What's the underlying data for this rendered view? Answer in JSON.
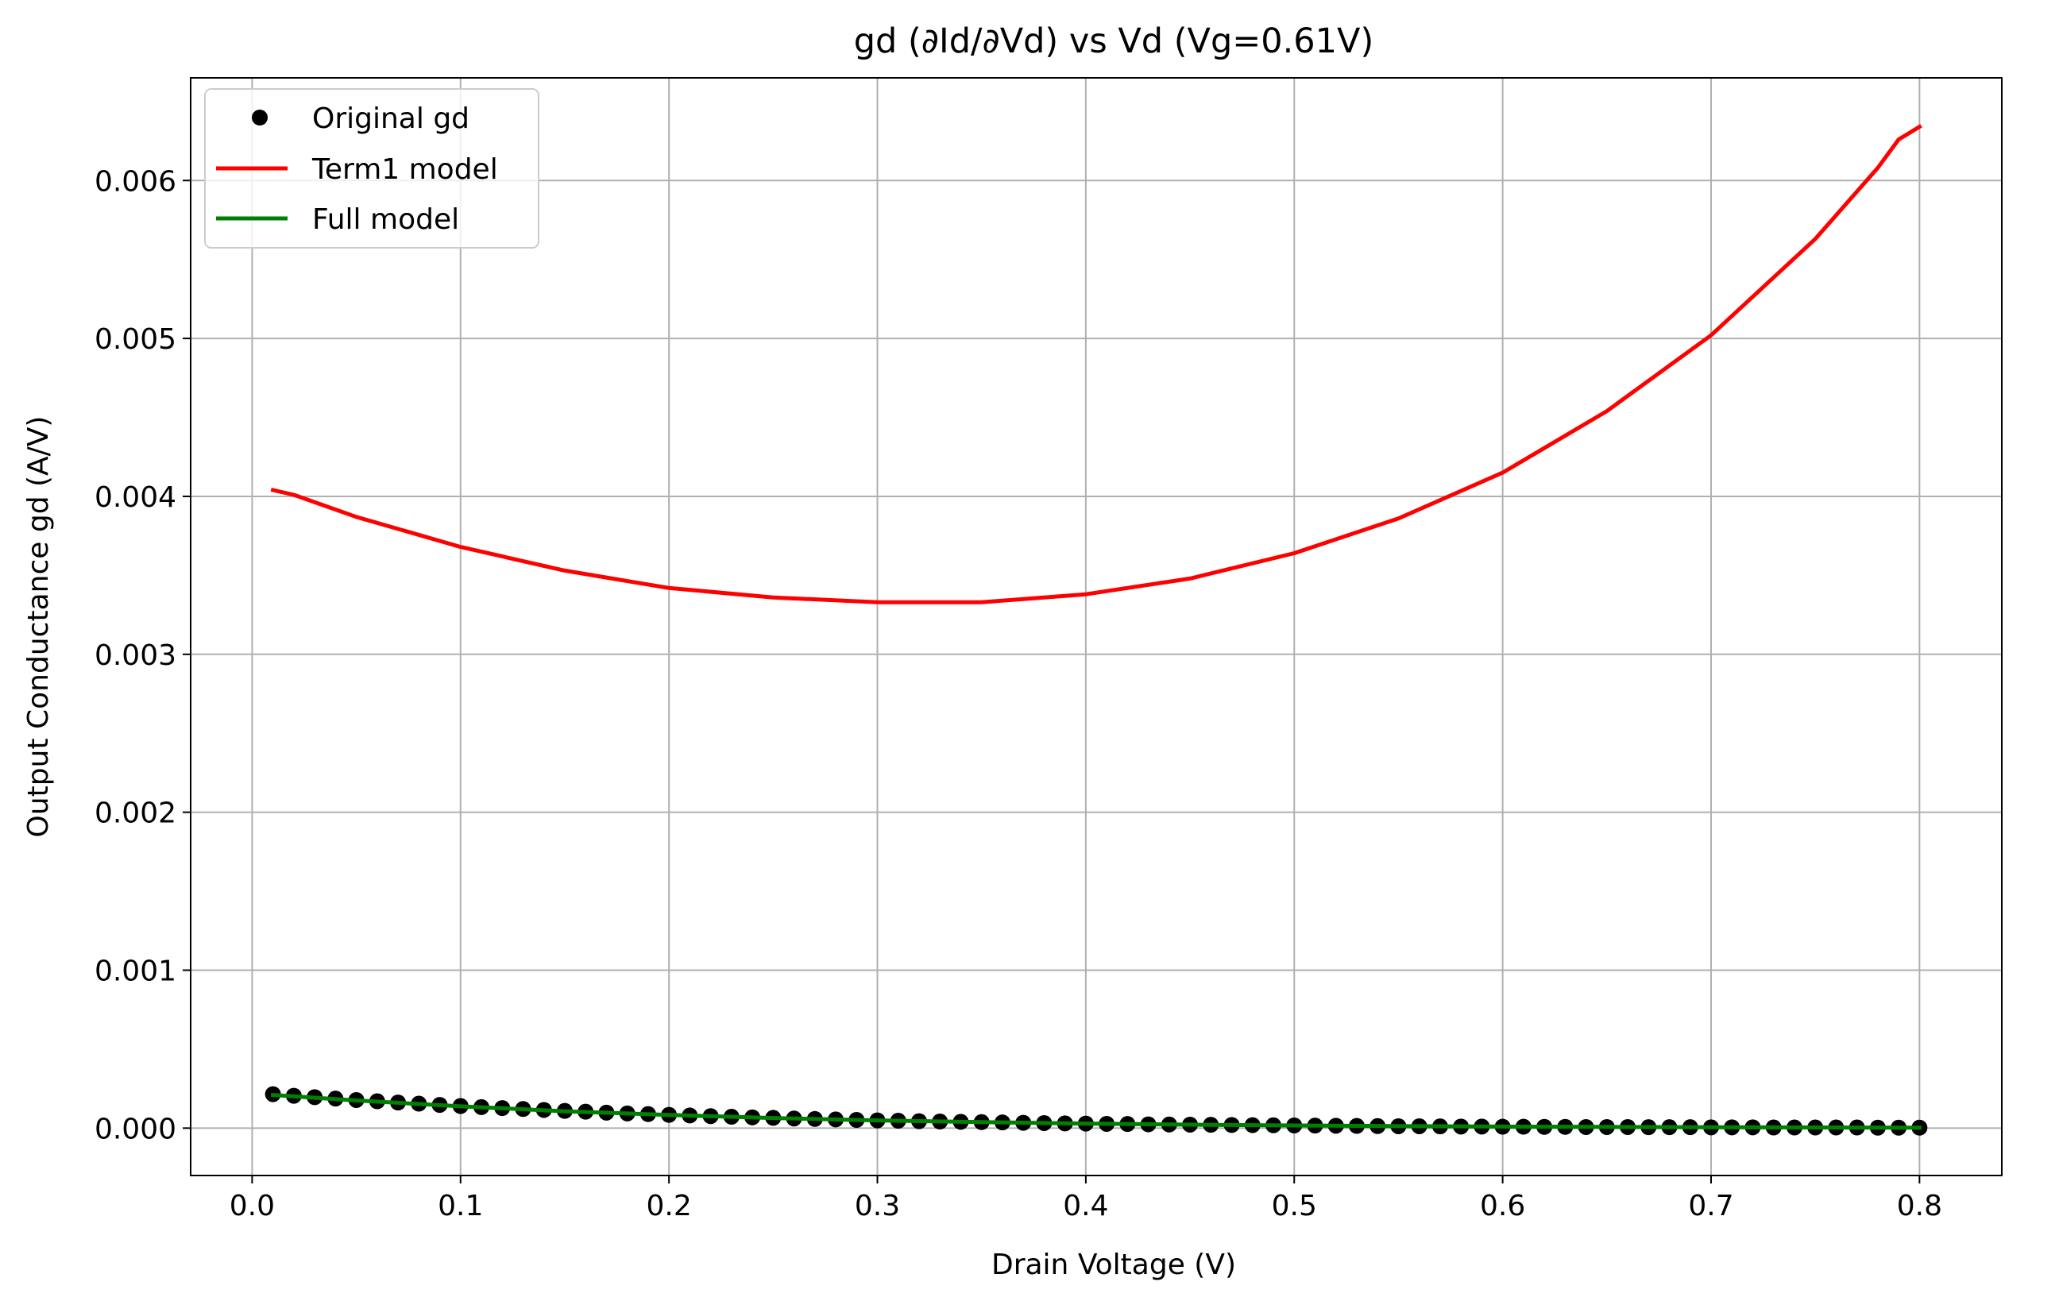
{
  "chart_data": {
    "type": "line",
    "title": "gd (∂Id/∂Vd) vs Vd (Vg=0.61V)",
    "xlabel": "Drain Voltage (V)",
    "ylabel": "Output Conductance gd (A/V)",
    "xlim": [
      -0.0295,
      0.8395
    ],
    "ylim": [
      -0.0003,
      0.00665
    ],
    "x_ticks": [
      0.0,
      0.1,
      0.2,
      0.3,
      0.4,
      0.5,
      0.6,
      0.7,
      0.8
    ],
    "x_tick_labels": [
      "0.0",
      "0.1",
      "0.2",
      "0.3",
      "0.4",
      "0.5",
      "0.6",
      "0.7",
      "0.8"
    ],
    "y_ticks": [
      0.0,
      0.001,
      0.002,
      0.003,
      0.004,
      0.005,
      0.006
    ],
    "y_tick_labels": [
      "0.000",
      "0.001",
      "0.002",
      "0.003",
      "0.004",
      "0.005",
      "0.006"
    ],
    "grid": true,
    "legend_position": "top-left",
    "series": [
      {
        "name": "Original gd",
        "kind": "scatter",
        "color": "#000000",
        "x": [
          0.01,
          0.02,
          0.03,
          0.04,
          0.05,
          0.06,
          0.07,
          0.08,
          0.09,
          0.1,
          0.11,
          0.12,
          0.13,
          0.14,
          0.15,
          0.16,
          0.17,
          0.18,
          0.19,
          0.2,
          0.21,
          0.22,
          0.23,
          0.24,
          0.25,
          0.26,
          0.27,
          0.28,
          0.29,
          0.3,
          0.31,
          0.32,
          0.33,
          0.34,
          0.35,
          0.36,
          0.37,
          0.38,
          0.39,
          0.4,
          0.41,
          0.42,
          0.43,
          0.44,
          0.45,
          0.46,
          0.47,
          0.48,
          0.49,
          0.5,
          0.51,
          0.52,
          0.53,
          0.54,
          0.55,
          0.56,
          0.57,
          0.58,
          0.59,
          0.6,
          0.61,
          0.62,
          0.63,
          0.64,
          0.65,
          0.66,
          0.67,
          0.68,
          0.69,
          0.7,
          0.71,
          0.72,
          0.73,
          0.74,
          0.75,
          0.76,
          0.77,
          0.78,
          0.79,
          0.8
        ],
        "y": [
          0.000215,
          0.000205,
          0.000196,
          0.000187,
          0.000178,
          0.00017,
          0.000162,
          0.000155,
          0.000147,
          0.00014,
          0.000133,
          0.000127,
          0.000121,
          0.000115,
          0.000109,
          0.000104,
          9.8e-05,
          9.3e-05,
          8.9e-05,
          8.4e-05,
          8e-05,
          7.6e-05,
          7.2e-05,
          6.8e-05,
          6.5e-05,
          6.1e-05,
          5.8e-05,
          5.5e-05,
          5.2e-05,
          4.9e-05,
          4.7e-05,
          4.4e-05,
          4.2e-05,
          4e-05,
          3.8e-05,
          3.6e-05,
          3.4e-05,
          3.2e-05,
          3e-05,
          2.9e-05,
          2.7e-05,
          2.6e-05,
          2.4e-05,
          2.3e-05,
          2.2e-05,
          2.1e-05,
          2e-05,
          1.9e-05,
          1.8e-05,
          1.7e-05,
          1.6e-05,
          1.5e-05,
          1.4e-05,
          1.3e-05,
          1.2e-05,
          1.2e-05,
          1.1e-05,
          1e-05,
          1e-05,
          9e-06,
          9e-06,
          8e-06,
          8e-06,
          7e-06,
          7e-06,
          7e-06,
          6e-06,
          6e-06,
          6e-06,
          5e-06,
          5e-06,
          5e-06,
          4e-06,
          4e-06,
          4e-06,
          4e-06,
          4e-06,
          3e-06,
          3e-06,
          3e-06
        ]
      },
      {
        "name": "Term1 model",
        "kind": "line",
        "color": "#ff0000",
        "x": [
          0.01,
          0.02,
          0.05,
          0.1,
          0.15,
          0.2,
          0.25,
          0.3,
          0.35,
          0.4,
          0.45,
          0.5,
          0.55,
          0.6,
          0.65,
          0.7,
          0.75,
          0.78,
          0.79,
          0.8
        ],
        "y": [
          0.00404,
          0.00401,
          0.00387,
          0.00368,
          0.00353,
          0.00342,
          0.00336,
          0.00333,
          0.00333,
          0.00338,
          0.00348,
          0.00364,
          0.00386,
          0.00415,
          0.00454,
          0.00502,
          0.00563,
          0.00608,
          0.00626,
          0.00634
        ]
      },
      {
        "name": "Full model",
        "kind": "line",
        "color": "#008000",
        "x": [
          0.01,
          0.05,
          0.1,
          0.15,
          0.2,
          0.25,
          0.3,
          0.35,
          0.4,
          0.45,
          0.5,
          0.55,
          0.6,
          0.65,
          0.7,
          0.75,
          0.8
        ],
        "y": [
          0.00021,
          0.000175,
          0.000138,
          0.000107,
          8.3e-05,
          6.4e-05,
          4.9e-05,
          3.8e-05,
          2.9e-05,
          2.2e-05,
          1.7e-05,
          1.3e-05,
          1e-05,
          8e-06,
          6e-06,
          4e-06,
          3e-06
        ]
      }
    ]
  }
}
